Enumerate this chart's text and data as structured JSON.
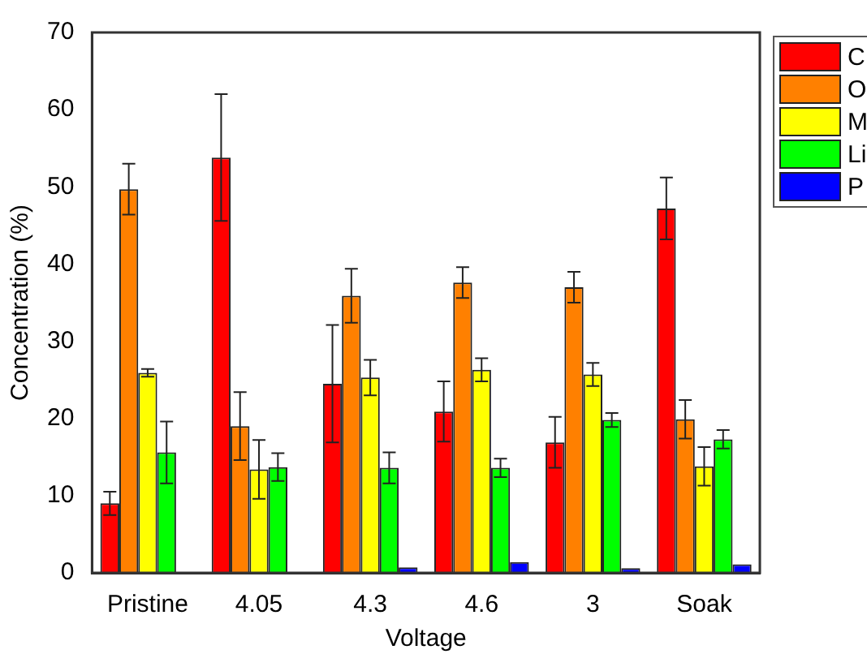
{
  "chart_data": {
    "type": "bar",
    "xlabel": "Voltage",
    "ylabel": "Concentration (%)",
    "categories": [
      "Pristine",
      "4.05",
      "4.3",
      "4.6",
      "3",
      "Soak"
    ],
    "ylim": [
      0,
      70
    ],
    "yticks": [
      0,
      10,
      20,
      30,
      40,
      50,
      60,
      70
    ],
    "grid": false,
    "legend": "right",
    "series": [
      {
        "name": "C",
        "color": "#ff0000",
        "values": [
          9,
          53.8,
          24.5,
          20.9,
          16.9,
          47.2
        ],
        "errors": [
          1.5,
          8.2,
          7.6,
          3.9,
          3.3,
          4
        ]
      },
      {
        "name": "O",
        "color": "#ff8000",
        "values": [
          49.7,
          19,
          35.9,
          37.6,
          37,
          19.9
        ],
        "errors": [
          3.3,
          4.4,
          3.5,
          2,
          2,
          2.5
        ]
      },
      {
        "name": "M",
        "color": "#ffff00",
        "values": [
          25.9,
          13.4,
          25.3,
          26.3,
          25.7,
          13.8
        ],
        "errors": [
          0.5,
          3.8,
          2.3,
          1.5,
          1.5,
          2.5
        ]
      },
      {
        "name": "Li",
        "color": "#00ff00",
        "values": [
          15.6,
          13.7,
          13.6,
          13.6,
          19.8,
          17.3
        ],
        "errors": [
          4,
          1.8,
          2,
          1.2,
          0.9,
          1.2
        ]
      },
      {
        "name": "P",
        "color": "#0000ff",
        "values": [
          null,
          null,
          0.7,
          1.4,
          0.6,
          1.1
        ]
      }
    ]
  }
}
